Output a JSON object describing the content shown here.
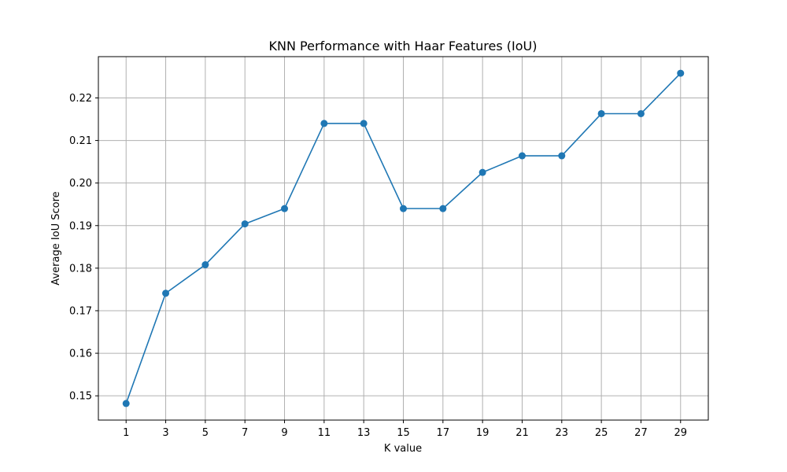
{
  "chart_data": {
    "type": "line",
    "title": "KNN Performance with Haar Features (IoU)",
    "xlabel": "K value",
    "ylabel": "Average IoU Score",
    "x": [
      1,
      3,
      5,
      7,
      9,
      11,
      13,
      15,
      17,
      19,
      21,
      23,
      25,
      27,
      29
    ],
    "series": [
      {
        "values": [
          0.1482,
          0.1741,
          0.1808,
          0.1904,
          0.194,
          0.214,
          0.214,
          0.194,
          0.194,
          0.2025,
          0.2064,
          0.2064,
          0.2163,
          0.2163,
          0.2258
        ],
        "color": "#1f77b4",
        "marker": "circle"
      }
    ],
    "xlim": [
      -0.4,
      30.4
    ],
    "ylim": [
      0.1443,
      0.2297
    ],
    "xticks": [
      1,
      3,
      5,
      7,
      9,
      11,
      13,
      15,
      17,
      19,
      21,
      23,
      25,
      27,
      29
    ],
    "yticks": [
      0.15,
      0.16,
      0.17,
      0.18,
      0.19,
      0.2,
      0.21,
      0.22
    ],
    "ytick_labels": [
      "0.15",
      "0.16",
      "0.17",
      "0.18",
      "0.19",
      "0.20",
      "0.21",
      "0.22"
    ],
    "grid": true,
    "grid_color": "#b0b0b0"
  }
}
